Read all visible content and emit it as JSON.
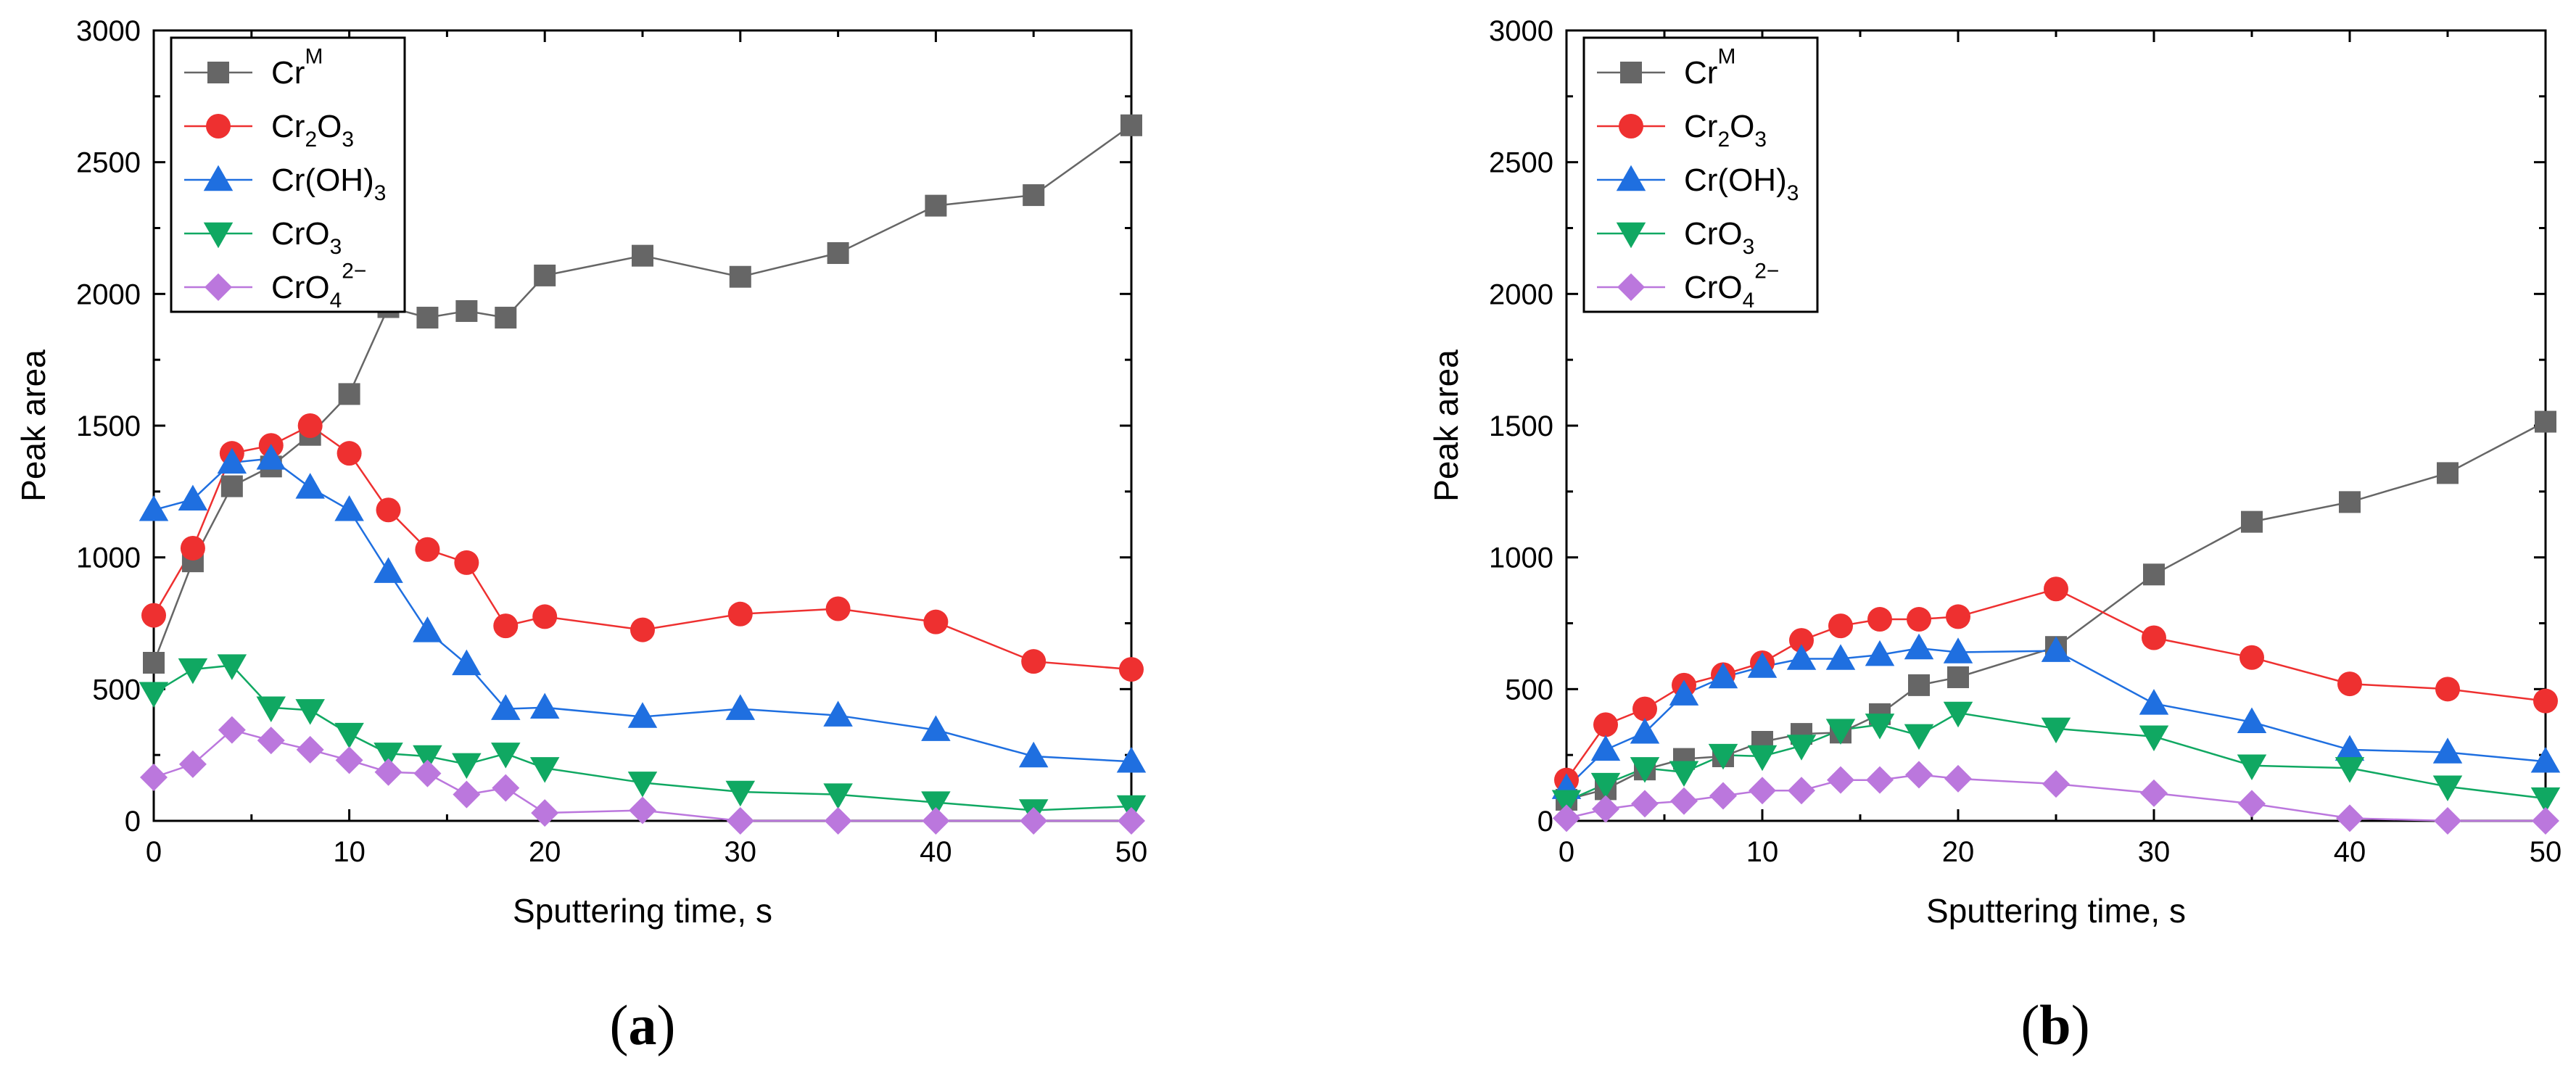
{
  "chart_data": [
    {
      "type": "line",
      "panel_label": "(a)",
      "panel_letter": "a",
      "xlabel": "Sputtering time, s",
      "ylabel": "Peak area",
      "xlim": [
        0,
        50
      ],
      "ylim": [
        0,
        3000
      ],
      "xticks": [
        0,
        10,
        20,
        30,
        40,
        50
      ],
      "yticks": [
        0,
        500,
        1000,
        1500,
        2000,
        2500,
        3000
      ],
      "legend_position": "top-left",
      "series": [
        {
          "name": "CrM",
          "label_base": "Cr",
          "label_sup": "M",
          "label_sub": "",
          "label_tail": "",
          "label_tail_sup": "",
          "color": "#666666",
          "marker": "square",
          "x": [
            0,
            2,
            4,
            6,
            8,
            10,
            12,
            14,
            16,
            18,
            20,
            25,
            30,
            35,
            40,
            45,
            50
          ],
          "y": [
            600,
            985,
            1270,
            1345,
            1465,
            1620,
            1950,
            1910,
            1935,
            1910,
            2070,
            2145,
            2065,
            2155,
            2335,
            2375,
            2640
          ]
        },
        {
          "name": "Cr2O3",
          "label_base": "Cr",
          "label_sub": "2",
          "label_tail": "O",
          "label_tail_sub": "3",
          "label_sup": "",
          "label_tail_sup": "",
          "color": "#ee3030",
          "marker": "circle",
          "x": [
            0,
            2,
            4,
            6,
            8,
            10,
            12,
            14,
            16,
            18,
            20,
            25,
            30,
            35,
            40,
            45,
            50
          ],
          "y": [
            780,
            1035,
            1395,
            1425,
            1500,
            1395,
            1180,
            1030,
            980,
            740,
            775,
            725,
            785,
            805,
            755,
            605,
            575
          ]
        },
        {
          "name": "Cr(OH)3",
          "label_base": "Cr(OH)",
          "label_sub": "3",
          "label_sup": "",
          "label_tail": "",
          "label_tail_sub": "",
          "label_tail_sup": "",
          "color": "#1f6fe0",
          "marker": "triangle-up",
          "x": [
            0,
            2,
            4,
            6,
            8,
            10,
            12,
            14,
            16,
            18,
            20,
            25,
            30,
            35,
            40,
            45,
            50
          ],
          "y": [
            1180,
            1220,
            1360,
            1375,
            1265,
            1180,
            945,
            720,
            595,
            425,
            430,
            395,
            425,
            400,
            345,
            245,
            225
          ]
        },
        {
          "name": "CrO3",
          "label_base": "CrO",
          "label_sub": "3",
          "label_sup": "",
          "label_tail": "",
          "label_tail_sub": "",
          "label_tail_sup": "",
          "color": "#10a862",
          "marker": "triangle-down",
          "x": [
            0,
            2,
            4,
            6,
            8,
            10,
            12,
            14,
            16,
            18,
            20,
            25,
            30,
            35,
            40,
            45,
            50
          ],
          "y": [
            485,
            575,
            590,
            430,
            420,
            330,
            255,
            245,
            215,
            255,
            200,
            145,
            110,
            100,
            70,
            40,
            55
          ]
        },
        {
          "name": "CrO4 2-",
          "label_base": "CrO",
          "label_sub": "4",
          "label_sup": "2−",
          "label_tail": "",
          "label_tail_sub": "",
          "label_tail_sup": "",
          "color": "#bb77dd",
          "marker": "diamond",
          "x": [
            0,
            2,
            4,
            6,
            8,
            10,
            12,
            14,
            16,
            18,
            20,
            25,
            30,
            35,
            40,
            45,
            50
          ],
          "y": [
            165,
            215,
            345,
            305,
            270,
            230,
            185,
            180,
            100,
            125,
            30,
            40,
            0,
            0,
            0,
            0,
            0
          ]
        }
      ]
    },
    {
      "type": "line",
      "panel_label": "(b)",
      "panel_letter": "b",
      "xlabel": "Sputtering time, s",
      "ylabel": "Peak area",
      "xlim": [
        0,
        50
      ],
      "ylim": [
        0,
        3000
      ],
      "xticks": [
        0,
        10,
        20,
        30,
        40,
        50
      ],
      "yticks": [
        0,
        500,
        1000,
        1500,
        2000,
        2500,
        3000
      ],
      "legend_position": "top-left",
      "series": [
        {
          "name": "CrM",
          "label_base": "Cr",
          "label_sup": "M",
          "label_sub": "",
          "label_tail": "",
          "label_tail_sup": "",
          "color": "#666666",
          "marker": "square",
          "x": [
            0,
            2,
            4,
            6,
            8,
            10,
            12,
            14,
            16,
            18,
            20,
            25,
            30,
            35,
            40,
            45,
            50
          ],
          "y": [
            80,
            120,
            195,
            235,
            245,
            300,
            330,
            335,
            405,
            515,
            545,
            660,
            935,
            1135,
            1210,
            1320,
            1515
          ]
        },
        {
          "name": "Cr2O3",
          "label_base": "Cr",
          "label_sub": "2",
          "label_tail": "O",
          "label_tail_sub": "3",
          "label_sup": "",
          "label_tail_sup": "",
          "color": "#ee3030",
          "marker": "circle",
          "x": [
            0,
            2,
            4,
            6,
            8,
            10,
            12,
            14,
            16,
            18,
            20,
            25,
            30,
            35,
            40,
            45,
            50
          ],
          "y": [
            155,
            365,
            425,
            515,
            555,
            600,
            685,
            740,
            765,
            765,
            775,
            880,
            695,
            620,
            520,
            500,
            455
          ]
        },
        {
          "name": "Cr(OH)3",
          "label_base": "Cr(OH)",
          "label_sub": "3",
          "label_sup": "",
          "label_tail": "",
          "label_tail_sub": "",
          "label_tail_sup": "",
          "color": "#1f6fe0",
          "marker": "triangle-up",
          "x": [
            0,
            2,
            4,
            6,
            8,
            10,
            12,
            14,
            16,
            18,
            20,
            25,
            30,
            35,
            40,
            45,
            50
          ],
          "y": [
            125,
            270,
            335,
            480,
            545,
            585,
            615,
            615,
            630,
            655,
            640,
            645,
            445,
            375,
            270,
            260,
            225
          ]
        },
        {
          "name": "CrO3",
          "label_base": "CrO",
          "label_sub": "3",
          "label_sup": "",
          "label_tail": "",
          "label_tail_sub": "",
          "label_tail_sup": "",
          "color": "#10a862",
          "marker": "triangle-down",
          "x": [
            0,
            2,
            4,
            6,
            8,
            10,
            12,
            14,
            16,
            18,
            20,
            25,
            30,
            35,
            40,
            45,
            50
          ],
          "y": [
            75,
            140,
            200,
            185,
            250,
            245,
            285,
            345,
            365,
            325,
            410,
            350,
            320,
            210,
            200,
            130,
            85
          ]
        },
        {
          "name": "CrO4 2-",
          "label_base": "CrO",
          "label_sub": "4",
          "label_sup": "2−",
          "label_tail": "",
          "label_tail_sub": "",
          "label_tail_sup": "",
          "color": "#bb77dd",
          "marker": "diamond",
          "x": [
            0,
            2,
            4,
            6,
            8,
            10,
            12,
            14,
            16,
            18,
            20,
            25,
            30,
            35,
            40,
            45,
            50
          ],
          "y": [
            10,
            45,
            65,
            75,
            95,
            115,
            115,
            155,
            155,
            175,
            160,
            140,
            105,
            65,
            10,
            0,
            0
          ]
        }
      ]
    }
  ]
}
